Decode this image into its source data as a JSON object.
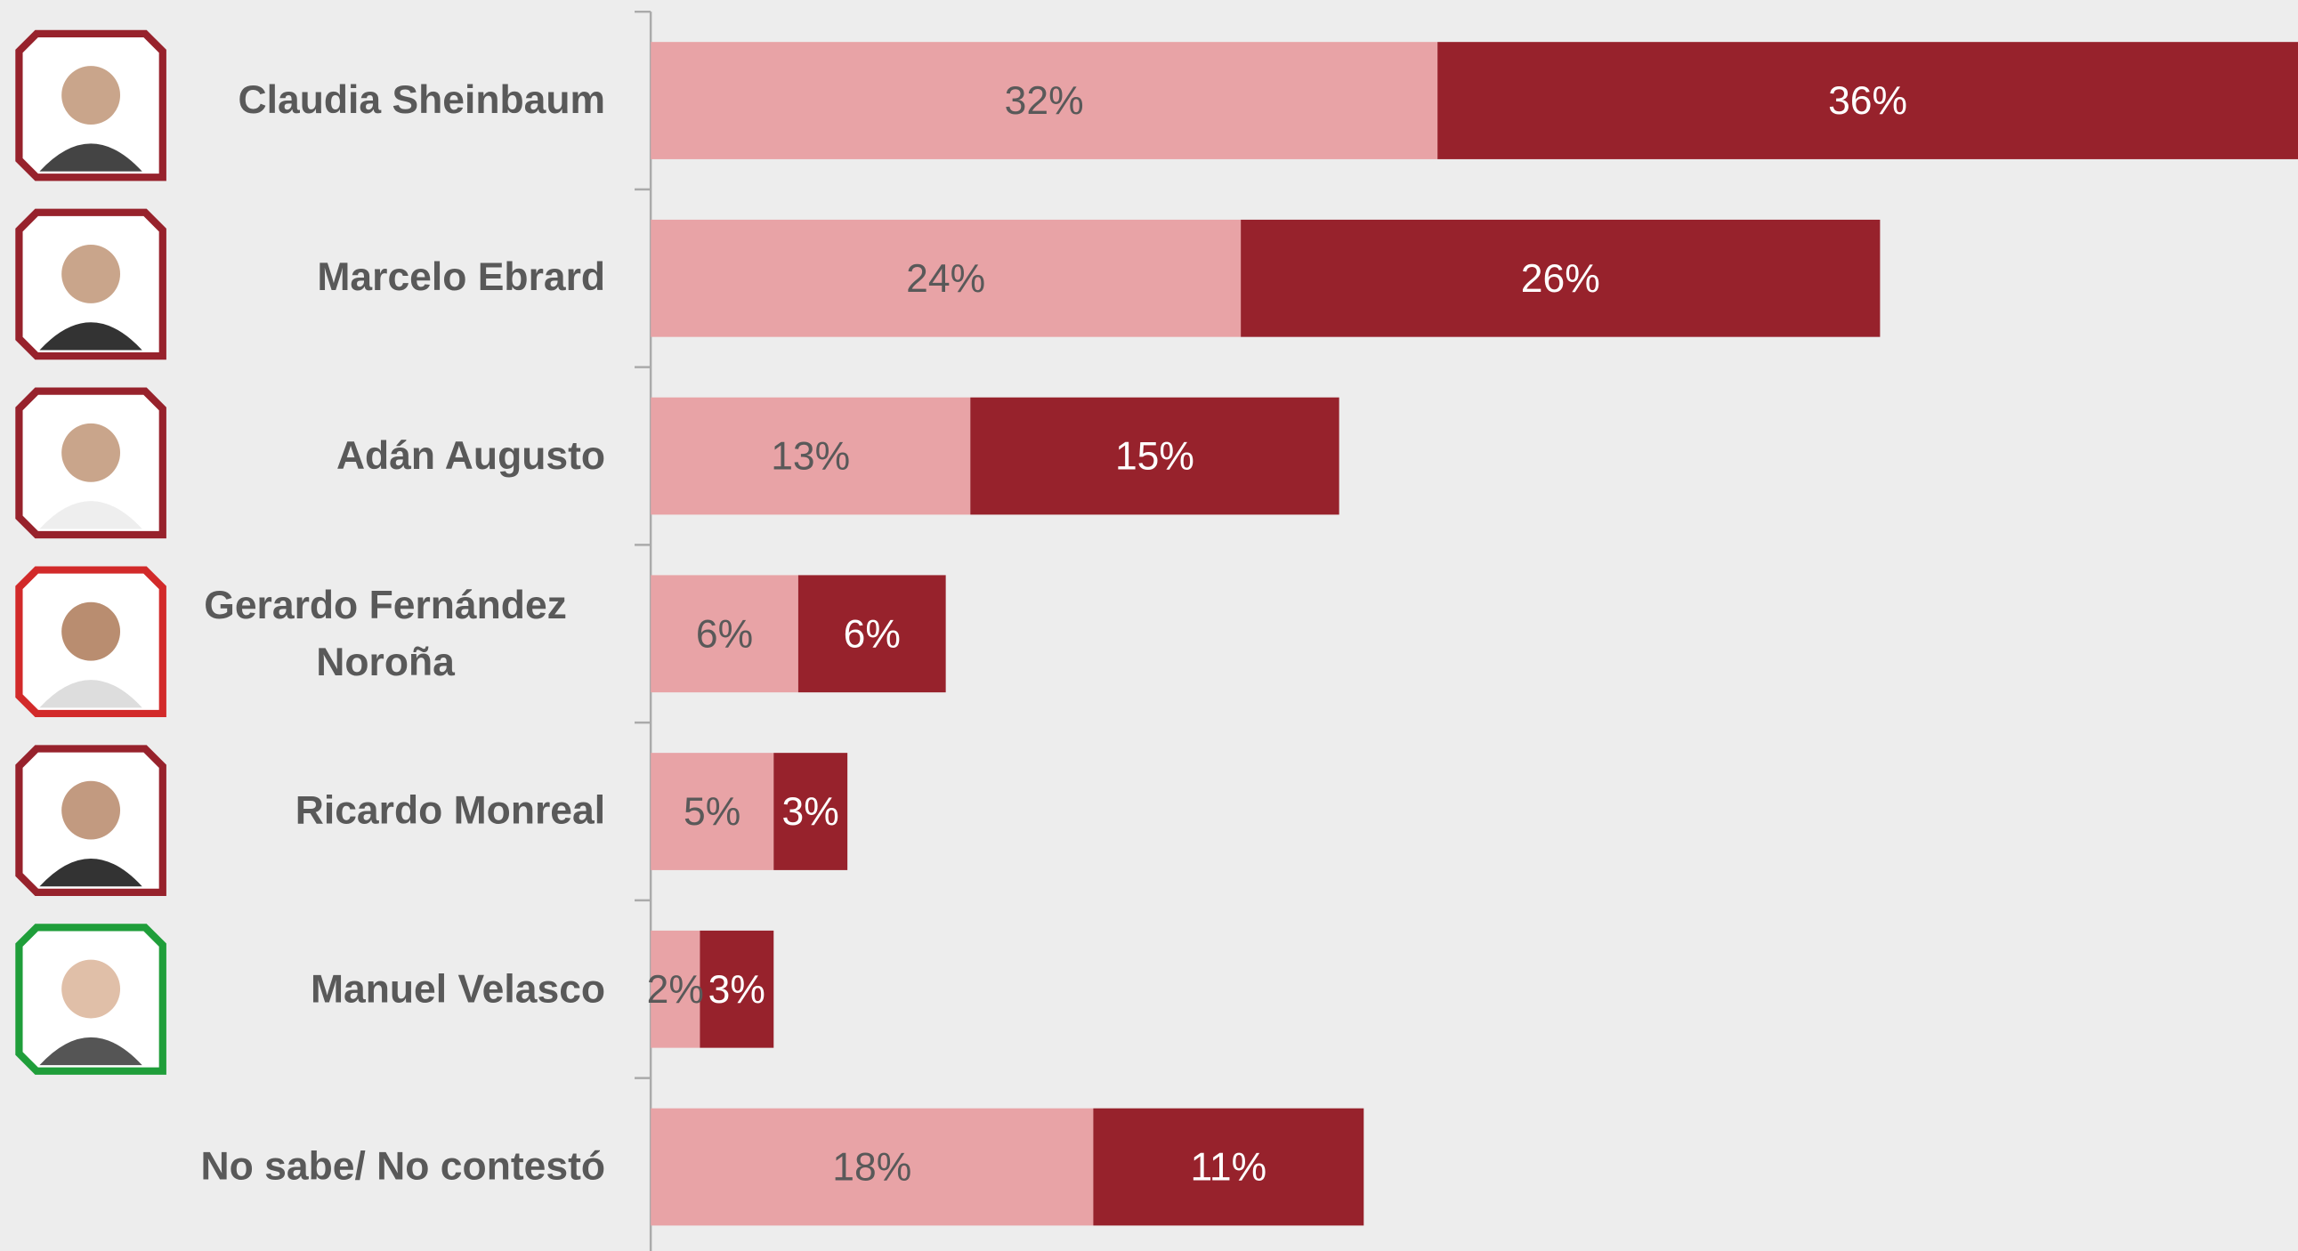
{
  "chart_data": {
    "type": "stacked-bar-horizontal",
    "categories": [
      "Claudia Sheinbaum",
      "Marcelo Ebrard",
      "Adán Augusto",
      "Gerardo Fernández Noroña",
      "Ricardo Monreal",
      "Manuel Velasco",
      "No sabe/ No contestó"
    ],
    "series": [
      {
        "color": "#e8a3a6",
        "values": [
          32,
          24,
          13,
          6,
          5,
          2,
          18
        ],
        "value_labels": [
          "32%",
          "24%",
          "13%",
          "6%",
          "5%",
          "2%",
          "18%"
        ]
      },
      {
        "color": "#97222c",
        "values": [
          36,
          26,
          15,
          6,
          3,
          3,
          11
        ],
        "value_labels": [
          "36%",
          "26%",
          "15%",
          "6%",
          "3%",
          "3%",
          "11%"
        ]
      }
    ],
    "xlim": [
      0,
      67
    ]
  }
}
